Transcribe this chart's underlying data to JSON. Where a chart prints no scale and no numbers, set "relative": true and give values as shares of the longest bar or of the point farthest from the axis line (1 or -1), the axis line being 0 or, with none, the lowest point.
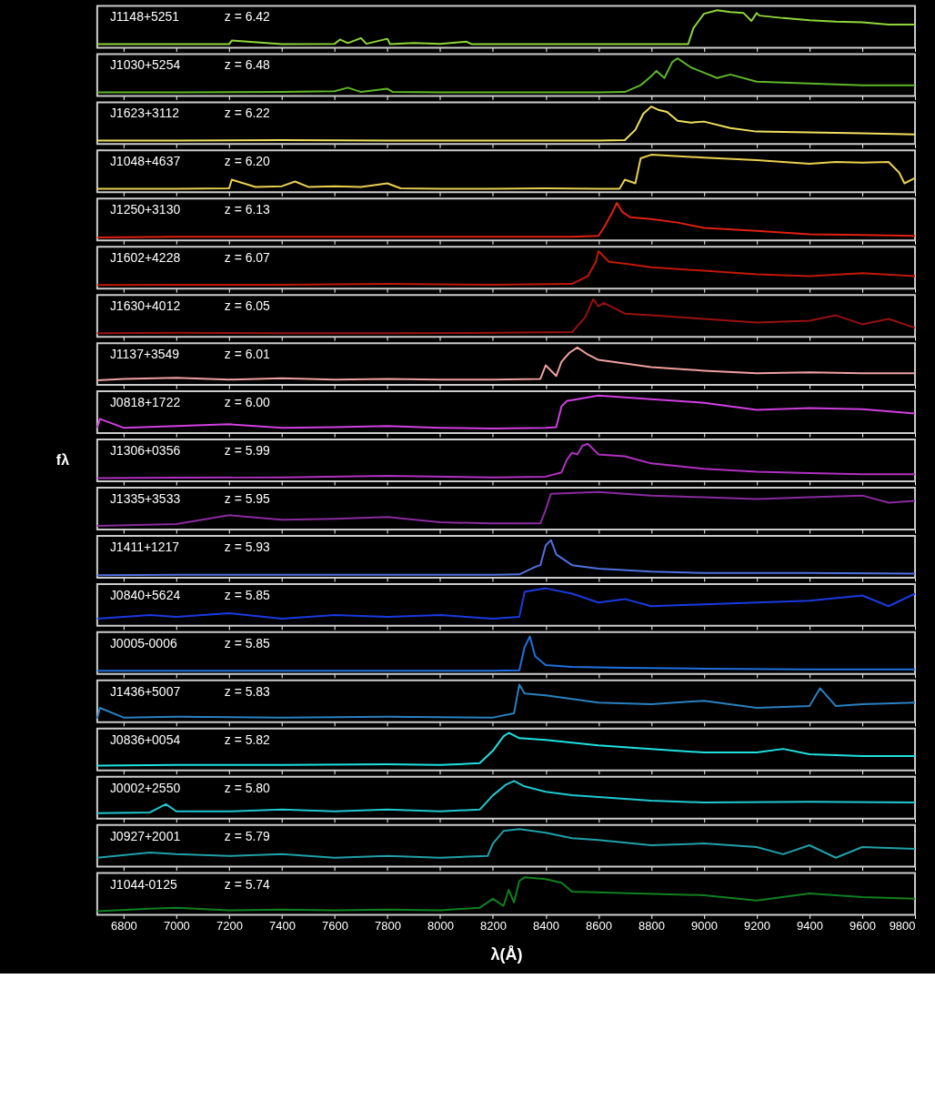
{
  "chart_data": [
    {
      "type": "line",
      "relative": true,
      "tick_labels": false,
      "xlim": [
        6700,
        9800
      ],
      "xticks": [
        6800,
        7000,
        7200,
        7400,
        7600,
        7800,
        8000,
        8200,
        8400,
        8600,
        8800,
        9000,
        9200,
        9400,
        9600,
        9800
      ],
      "annotations": [
        "J1148+5251",
        "z = 6.42"
      ],
      "series": [
        {
          "color": "#8fd63a",
          "x": [
            6700,
            6900,
            7200,
            7210,
            7400,
            7600,
            7620,
            7650,
            7700,
            7720,
            7800,
            7810,
            7900,
            8000,
            8100,
            8120,
            8200,
            8400,
            8600,
            8800,
            8940,
            8960,
            8980,
            9000,
            9050,
            9100,
            9150,
            9180,
            9200,
            9210,
            9300,
            9400,
            9500,
            9600,
            9700,
            9800
          ],
          "values": [
            0.05,
            0.05,
            0.05,
            0.15,
            0.05,
            0.06,
            0.18,
            0.08,
            0.22,
            0.06,
            0.2,
            0.05,
            0.08,
            0.06,
            0.12,
            0.05,
            0.05,
            0.05,
            0.05,
            0.05,
            0.05,
            0.5,
            0.7,
            0.9,
            1.0,
            0.95,
            0.92,
            0.7,
            0.92,
            0.85,
            0.78,
            0.72,
            0.68,
            0.66,
            0.6,
            0.6
          ]
        }
      ]
    },
    {
      "type": "line",
      "relative": true,
      "tick_labels": false,
      "xlim": [
        6700,
        9800
      ],
      "xticks": [
        6800,
        7000,
        7200,
        7400,
        7600,
        7800,
        8000,
        8200,
        8400,
        8600,
        8800,
        9000,
        9200,
        9400,
        9600,
        9800
      ],
      "annotations": [
        "J1030+5254",
        "z = 6.48"
      ],
      "series": [
        {
          "color": "#5fb52a",
          "x": [
            6700,
            7000,
            7400,
            7600,
            7650,
            7700,
            7800,
            7820,
            8000,
            8200,
            8400,
            8600,
            8700,
            8760,
            8800,
            8820,
            8850,
            8880,
            8900,
            8950,
            9000,
            9050,
            9100,
            9200,
            9400,
            9600,
            9800
          ],
          "values": [
            0.05,
            0.05,
            0.06,
            0.08,
            0.18,
            0.06,
            0.15,
            0.06,
            0.05,
            0.05,
            0.05,
            0.05,
            0.06,
            0.25,
            0.5,
            0.65,
            0.45,
            0.9,
            1.0,
            0.75,
            0.6,
            0.45,
            0.55,
            0.35,
            0.3,
            0.25,
            0.25
          ]
        }
      ]
    },
    {
      "type": "line",
      "relative": true,
      "tick_labels": false,
      "xlim": [
        6700,
        9800
      ],
      "xticks": [
        6800,
        7000,
        7200,
        7400,
        7600,
        7800,
        8000,
        8200,
        8400,
        8600,
        8800,
        9000,
        9200,
        9400,
        9600,
        9800
      ],
      "annotations": [
        "J1623+3112",
        "z = 6.22"
      ],
      "series": [
        {
          "color": "#f0e060",
          "x": [
            6700,
            7000,
            7400,
            7800,
            8200,
            8600,
            8700,
            8740,
            8770,
            8800,
            8830,
            8860,
            8900,
            8950,
            9000,
            9100,
            9200,
            9400,
            9600,
            9800
          ],
          "values": [
            0.05,
            0.05,
            0.06,
            0.05,
            0.05,
            0.05,
            0.06,
            0.35,
            0.8,
            1.0,
            0.9,
            0.85,
            0.6,
            0.55,
            0.58,
            0.4,
            0.3,
            0.28,
            0.25,
            0.22
          ]
        }
      ]
    },
    {
      "type": "line",
      "relative": true,
      "tick_labels": false,
      "xlim": [
        6700,
        9800
      ],
      "xticks": [
        6800,
        7000,
        7200,
        7400,
        7600,
        7800,
        8000,
        8200,
        8400,
        8600,
        8800,
        9000,
        9200,
        9400,
        9600,
        9800
      ],
      "annotations": [
        "J1048+4637",
        "z = 6.20"
      ],
      "series": [
        {
          "color": "#e8d050",
          "x": [
            6700,
            7000,
            7200,
            7210,
            7300,
            7400,
            7450,
            7500,
            7600,
            7700,
            7800,
            7850,
            8000,
            8200,
            8400,
            8600,
            8680,
            8700,
            8740,
            8760,
            8800,
            9000,
            9200,
            9400,
            9500,
            9600,
            9700,
            9740,
            9760,
            9800
          ],
          "values": [
            0.05,
            0.05,
            0.06,
            0.3,
            0.1,
            0.12,
            0.25,
            0.1,
            0.12,
            0.1,
            0.2,
            0.06,
            0.05,
            0.05,
            0.06,
            0.05,
            0.05,
            0.3,
            0.2,
            0.9,
            1.0,
            0.92,
            0.85,
            0.75,
            0.8,
            0.78,
            0.8,
            0.5,
            0.2,
            0.35
          ]
        }
      ]
    },
    {
      "type": "line",
      "relative": true,
      "tick_labels": false,
      "xlim": [
        6700,
        9800
      ],
      "xticks": [
        6800,
        7000,
        7200,
        7400,
        7600,
        7800,
        8000,
        8200,
        8400,
        8600,
        8800,
        9000,
        9200,
        9400,
        9600,
        9800
      ],
      "annotations": [
        "J1250+3130",
        "z = 6.13"
      ],
      "series": [
        {
          "color": "#e02010",
          "x": [
            6700,
            7000,
            7400,
            7800,
            8200,
            8500,
            8600,
            8620,
            8650,
            8670,
            8690,
            8720,
            8800,
            8900,
            9000,
            9200,
            9400,
            9600,
            9800
          ],
          "values": [
            0.03,
            0.05,
            0.05,
            0.05,
            0.05,
            0.05,
            0.08,
            0.3,
            0.7,
            1.0,
            0.75,
            0.6,
            0.55,
            0.45,
            0.3,
            0.22,
            0.12,
            0.1,
            0.08
          ]
        }
      ]
    },
    {
      "type": "line",
      "relative": true,
      "tick_labels": false,
      "xlim": [
        6700,
        9800
      ],
      "xticks": [
        6800,
        7000,
        7200,
        7400,
        7600,
        7800,
        8000,
        8200,
        8400,
        8600,
        8800,
        9000,
        9200,
        9400,
        9600,
        9800
      ],
      "annotations": [
        "J1602+4228",
        "z = 6.07"
      ],
      "series": [
        {
          "color": "#c01808",
          "x": [
            6700,
            7000,
            7400,
            7800,
            8200,
            8500,
            8560,
            8590,
            8600,
            8640,
            8700,
            8800,
            9000,
            9200,
            9400,
            9600,
            9800
          ],
          "values": [
            0.05,
            0.06,
            0.06,
            0.08,
            0.06,
            0.08,
            0.3,
            0.7,
            1.0,
            0.7,
            0.65,
            0.55,
            0.45,
            0.35,
            0.3,
            0.38,
            0.3
          ]
        }
      ]
    },
    {
      "type": "line",
      "relative": true,
      "tick_labels": false,
      "xlim": [
        6700,
        9800
      ],
      "xticks": [
        6800,
        7000,
        7200,
        7400,
        7600,
        7800,
        8000,
        8200,
        8400,
        8600,
        8800,
        9000,
        9200,
        9400,
        9600,
        9800
      ],
      "annotations": [
        "J1630+4012",
        "z = 6.05"
      ],
      "series": [
        {
          "color": "#9a1010",
          "x": [
            6700,
            7000,
            7400,
            7800,
            8200,
            8500,
            8550,
            8580,
            8600,
            8620,
            8700,
            8800,
            9000,
            9200,
            9400,
            9500,
            9600,
            9700,
            9800
          ],
          "values": [
            0.05,
            0.06,
            0.05,
            0.05,
            0.06,
            0.08,
            0.5,
            1.0,
            0.8,
            0.9,
            0.6,
            0.55,
            0.45,
            0.35,
            0.4,
            0.55,
            0.3,
            0.45,
            0.2
          ]
        }
      ]
    },
    {
      "type": "line",
      "relative": true,
      "tick_labels": false,
      "xlim": [
        6700,
        9800
      ],
      "xticks": [
        6800,
        7000,
        7200,
        7400,
        7600,
        7800,
        8000,
        8200,
        8400,
        8600,
        8800,
        9000,
        9200,
        9400,
        9600,
        9800
      ],
      "annotations": [
        "J1137+3549",
        "z = 6.01"
      ],
      "series": [
        {
          "color": "#f0a0a0",
          "x": [
            6700,
            6800,
            7000,
            7200,
            7400,
            7600,
            7800,
            8000,
            8200,
            8380,
            8400,
            8440,
            8460,
            8490,
            8520,
            8560,
            8600,
            8700,
            8800,
            9000,
            9200,
            9400,
            9600,
            9800
          ],
          "values": [
            0.08,
            0.12,
            0.15,
            0.1,
            0.14,
            0.1,
            0.12,
            0.1,
            0.1,
            0.12,
            0.5,
            0.2,
            0.6,
            0.85,
            1.0,
            0.8,
            0.65,
            0.55,
            0.45,
            0.35,
            0.28,
            0.3,
            0.28,
            0.28
          ]
        }
      ]
    },
    {
      "type": "line",
      "relative": true,
      "tick_labels": false,
      "xlim": [
        6700,
        9800
      ],
      "xticks": [
        6800,
        7000,
        7200,
        7400,
        7600,
        7800,
        8000,
        8200,
        8400,
        8600,
        8800,
        9000,
        9200,
        9400,
        9600,
        9800
      ],
      "annotations": [
        "J0818+1722",
        "z = 6.00"
      ],
      "series": [
        {
          "color": "#d040e0",
          "x": [
            6700,
            6710,
            6800,
            7000,
            7200,
            7400,
            7600,
            7800,
            8000,
            8200,
            8400,
            8440,
            8460,
            8480,
            8600,
            8800,
            9000,
            9200,
            9400,
            9600,
            9800
          ],
          "values": [
            0.1,
            0.35,
            0.1,
            0.15,
            0.2,
            0.1,
            0.12,
            0.15,
            0.1,
            0.08,
            0.1,
            0.12,
            0.7,
            0.85,
            1.0,
            0.9,
            0.8,
            0.6,
            0.65,
            0.62,
            0.5
          ]
        }
      ]
    },
    {
      "type": "line",
      "relative": true,
      "tick_labels": false,
      "ylabel": "fλ",
      "xlim": [
        6700,
        9800
      ],
      "xticks": [
        6800,
        7000,
        7200,
        7400,
        7600,
        7800,
        8000,
        8200,
        8400,
        8600,
        8800,
        9000,
        9200,
        9400,
        9600,
        9800
      ],
      "annotations": [
        "J1306+0356",
        "z = 5.99"
      ],
      "series": [
        {
          "color": "#b030c0",
          "x": [
            6700,
            7000,
            7400,
            7800,
            8200,
            8400,
            8460,
            8480,
            8500,
            8520,
            8540,
            8560,
            8600,
            8700,
            8800,
            9000,
            9200,
            9400,
            9600,
            9800
          ],
          "values": [
            0.04,
            0.05,
            0.06,
            0.1,
            0.06,
            0.08,
            0.2,
            0.55,
            0.75,
            0.7,
            0.95,
            1.0,
            0.7,
            0.65,
            0.45,
            0.3,
            0.22,
            0.18,
            0.15,
            0.15
          ]
        }
      ]
    },
    {
      "type": "line",
      "relative": true,
      "tick_labels": false,
      "xlim": [
        6700,
        9800
      ],
      "xticks": [
        6800,
        7000,
        7200,
        7400,
        7600,
        7800,
        8000,
        8200,
        8400,
        8600,
        8800,
        9000,
        9200,
        9400,
        9600,
        9800
      ],
      "annotations": [
        "J1335+3533",
        "z = 5.95"
      ],
      "series": [
        {
          "color": "#8a2aa0",
          "x": [
            6700,
            7000,
            7200,
            7400,
            7600,
            7800,
            8000,
            8200,
            8380,
            8400,
            8420,
            8600,
            8800,
            9000,
            9200,
            9400,
            9600,
            9700,
            9800
          ],
          "values": [
            0.05,
            0.1,
            0.35,
            0.22,
            0.25,
            0.3,
            0.15,
            0.12,
            0.12,
            0.5,
            0.95,
            1.0,
            0.9,
            0.85,
            0.8,
            0.85,
            0.9,
            0.7,
            0.75
          ]
        }
      ]
    },
    {
      "type": "line",
      "relative": true,
      "tick_labels": false,
      "xlim": [
        6700,
        9800
      ],
      "xticks": [
        6800,
        7000,
        7200,
        7400,
        7600,
        7800,
        8000,
        8200,
        8400,
        8600,
        8800,
        9000,
        9200,
        9400,
        9600,
        9800
      ],
      "annotations": [
        "J1411+1217",
        "z = 5.93"
      ],
      "series": [
        {
          "color": "#5070e0",
          "x": [
            6700,
            7000,
            7400,
            7800,
            8200,
            8300,
            8360,
            8380,
            8400,
            8420,
            8440,
            8500,
            8600,
            8800,
            9000,
            9400,
            9800
          ],
          "values": [
            0.02,
            0.03,
            0.03,
            0.03,
            0.03,
            0.04,
            0.25,
            0.3,
            0.85,
            1.0,
            0.6,
            0.3,
            0.2,
            0.12,
            0.08,
            0.08,
            0.06
          ]
        }
      ]
    },
    {
      "type": "line",
      "relative": true,
      "tick_labels": false,
      "xlim": [
        6700,
        9800
      ],
      "xticks": [
        6800,
        7000,
        7200,
        7400,
        7600,
        7800,
        8000,
        8200,
        8400,
        8600,
        8800,
        9000,
        9200,
        9400,
        9600,
        9800
      ],
      "annotations": [
        "J0840+5624",
        "z = 5.85"
      ],
      "series": [
        {
          "color": "#1a3ae0",
          "x": [
            6700,
            6900,
            7000,
            7200,
            7400,
            7600,
            7800,
            8000,
            8200,
            8300,
            8320,
            8400,
            8500,
            8600,
            8700,
            8800,
            9000,
            9200,
            9400,
            9600,
            9700,
            9800
          ],
          "values": [
            0.15,
            0.25,
            0.2,
            0.3,
            0.15,
            0.25,
            0.2,
            0.25,
            0.15,
            0.2,
            0.9,
            1.0,
            0.85,
            0.6,
            0.7,
            0.5,
            0.55,
            0.6,
            0.65,
            0.8,
            0.5,
            0.85
          ]
        }
      ]
    },
    {
      "type": "line",
      "relative": true,
      "tick_labels": false,
      "xlim": [
        6700,
        9800
      ],
      "xticks": [
        6800,
        7000,
        7200,
        7400,
        7600,
        7800,
        8000,
        8200,
        8400,
        8600,
        8800,
        9000,
        9200,
        9400,
        9600,
        9800
      ],
      "annotations": [
        "J0005-0006",
        "z = 5.85"
      ],
      "series": [
        {
          "color": "#2070e0",
          "x": [
            6700,
            7000,
            7400,
            7800,
            8200,
            8300,
            8320,
            8340,
            8360,
            8400,
            8500,
            8700,
            9000,
            9400,
            9800
          ],
          "values": [
            0.04,
            0.04,
            0.04,
            0.04,
            0.04,
            0.05,
            0.7,
            1.0,
            0.45,
            0.2,
            0.15,
            0.12,
            0.1,
            0.08,
            0.08
          ]
        }
      ]
    },
    {
      "type": "line",
      "relative": true,
      "tick_labels": false,
      "xlim": [
        6700,
        9800
      ],
      "xticks": [
        6800,
        7000,
        7200,
        7400,
        7600,
        7800,
        8000,
        8200,
        8400,
        8600,
        8800,
        9000,
        9200,
        9400,
        9600,
        9800
      ],
      "annotations": [
        "J1436+5007",
        "z = 5.83"
      ],
      "series": [
        {
          "color": "#2a80c0",
          "x": [
            6700,
            6710,
            6800,
            7000,
            7400,
            7800,
            8200,
            8280,
            8300,
            8320,
            8400,
            8600,
            8800,
            9000,
            9200,
            9400,
            9440,
            9500,
            9600,
            9800
          ],
          "values": [
            0.05,
            0.35,
            0.08,
            0.1,
            0.08,
            0.1,
            0.08,
            0.2,
            1.0,
            0.75,
            0.7,
            0.5,
            0.45,
            0.55,
            0.35,
            0.4,
            0.9,
            0.4,
            0.45,
            0.5
          ]
        }
      ]
    },
    {
      "type": "line",
      "relative": true,
      "tick_labels": false,
      "xlim": [
        6700,
        9800
      ],
      "xticks": [
        6800,
        7000,
        7200,
        7400,
        7600,
        7800,
        8000,
        8200,
        8400,
        8600,
        8800,
        9000,
        9200,
        9400,
        9600,
        9800
      ],
      "annotations": [
        "J0836+0054",
        "z = 5.82"
      ],
      "series": [
        {
          "color": "#20e0e0",
          "x": [
            6700,
            7000,
            7400,
            7800,
            8000,
            8150,
            8200,
            8240,
            8260,
            8300,
            8400,
            8600,
            8800,
            9000,
            9200,
            9300,
            9400,
            9600,
            9800
          ],
          "values": [
            0.08,
            0.1,
            0.1,
            0.12,
            0.1,
            0.15,
            0.5,
            0.9,
            1.0,
            0.85,
            0.8,
            0.65,
            0.55,
            0.45,
            0.45,
            0.55,
            0.4,
            0.35,
            0.35
          ]
        }
      ]
    },
    {
      "type": "line",
      "relative": true,
      "tick_labels": false,
      "xlim": [
        6700,
        9800
      ],
      "xticks": [
        6800,
        7000,
        7200,
        7400,
        7600,
        7800,
        8000,
        8200,
        8400,
        8600,
        8800,
        9000,
        9200,
        9400,
        9600,
        9800
      ],
      "annotations": [
        "J0002+2550",
        "z = 5.80"
      ],
      "series": [
        {
          "color": "#20c8d0",
          "x": [
            6700,
            6900,
            6960,
            7000,
            7200,
            7400,
            7600,
            7800,
            8000,
            8150,
            8200,
            8250,
            8280,
            8320,
            8400,
            8500,
            8600,
            8800,
            9000,
            9400,
            9800
          ],
          "values": [
            0.1,
            0.12,
            0.35,
            0.15,
            0.15,
            0.2,
            0.15,
            0.2,
            0.15,
            0.2,
            0.6,
            0.9,
            1.0,
            0.85,
            0.7,
            0.6,
            0.55,
            0.45,
            0.4,
            0.42,
            0.4
          ]
        }
      ]
    },
    {
      "type": "line",
      "relative": true,
      "tick_labels": false,
      "xlim": [
        6700,
        9800
      ],
      "xticks": [
        6800,
        7000,
        7200,
        7400,
        7600,
        7800,
        8000,
        8200,
        8400,
        8600,
        8800,
        9000,
        9200,
        9400,
        9600,
        9800
      ],
      "annotations": [
        "J0927+2001",
        "z = 5.79"
      ],
      "series": [
        {
          "color": "#20a0a8",
          "x": [
            6700,
            6900,
            7000,
            7200,
            7400,
            7600,
            7800,
            8000,
            8180,
            8200,
            8240,
            8300,
            8400,
            8500,
            8600,
            8800,
            9000,
            9200,
            9300,
            9400,
            9500,
            9600,
            9800
          ],
          "values": [
            0.2,
            0.35,
            0.3,
            0.25,
            0.3,
            0.2,
            0.25,
            0.2,
            0.25,
            0.6,
            0.95,
            1.0,
            0.9,
            0.75,
            0.7,
            0.55,
            0.6,
            0.5,
            0.3,
            0.55,
            0.2,
            0.5,
            0.45
          ]
        }
      ]
    },
    {
      "type": "line",
      "relative": true,
      "tick_labels": "x",
      "xlabel": "λ(Å)",
      "xlim": [
        6700,
        9800
      ],
      "xticks": [
        6800,
        7000,
        7200,
        7400,
        7600,
        7800,
        8000,
        8200,
        8400,
        8600,
        8800,
        9000,
        9200,
        9400,
        9600,
        9800
      ],
      "annotations": [
        "J1044-0125",
        "z = 5.74"
      ],
      "series": [
        {
          "color": "#108020",
          "x": [
            6700,
            6900,
            7000,
            7200,
            7400,
            7600,
            7800,
            8000,
            8150,
            8200,
            8240,
            8260,
            8280,
            8300,
            8320,
            8400,
            8460,
            8500,
            9000,
            9200,
            9400,
            9600,
            9800
          ],
          "values": [
            0.05,
            0.12,
            0.15,
            0.08,
            0.1,
            0.08,
            0.1,
            0.08,
            0.15,
            0.4,
            0.2,
            0.65,
            0.3,
            0.9,
            1.0,
            0.95,
            0.85,
            0.6,
            0.5,
            0.35,
            0.55,
            0.45,
            0.4
          ]
        }
      ]
    }
  ]
}
